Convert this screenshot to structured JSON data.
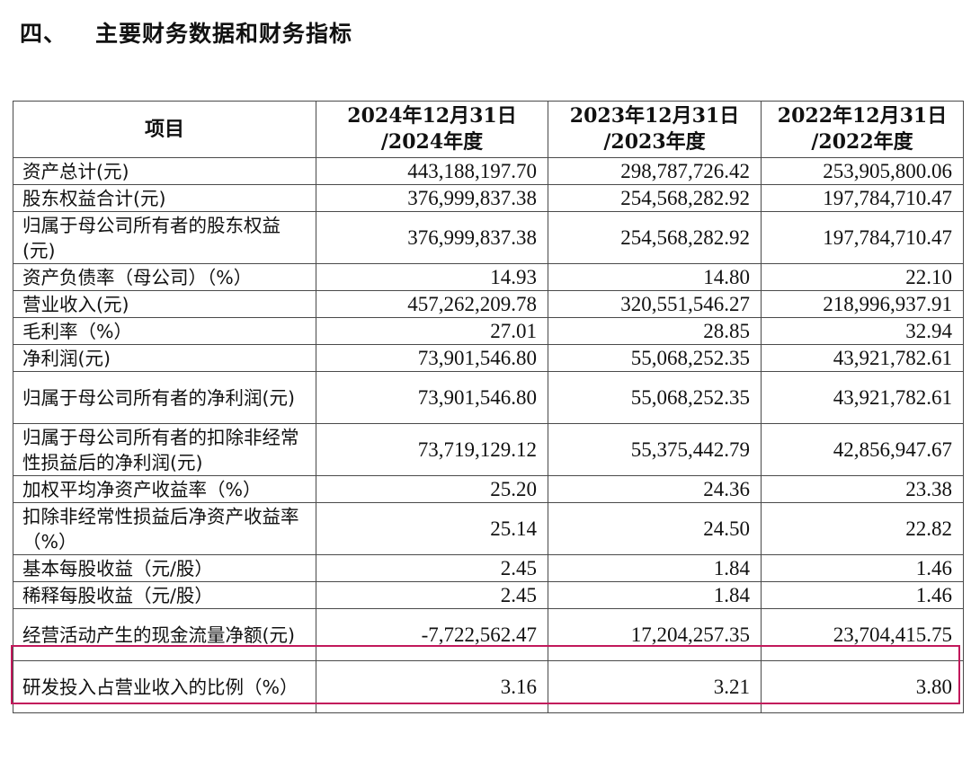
{
  "heading": {
    "number": "四、",
    "title": "主要财务数据和财务指标"
  },
  "table": {
    "header": {
      "item": "项目",
      "col1": [
        "2024年12月31日",
        "/2024年度"
      ],
      "col2": [
        "2023年12月31日",
        "/2023年度"
      ],
      "col3": [
        "2022年12月31日",
        "/2022年度"
      ]
    },
    "rows": [
      {
        "label": "资产总计(元)",
        "v2024": "443,188,197.70",
        "v2023": "298,787,726.42",
        "v2022": "253,905,800.06"
      },
      {
        "label": "股东权益合计(元)",
        "v2024": "376,999,837.38",
        "v2023": "254,568,282.92",
        "v2022": "197,784,710.47"
      },
      {
        "label": "归属于母公司所有者的股东权益(元)",
        "v2024": "376,999,837.38",
        "v2023": "254,568,282.92",
        "v2022": "197,784,710.47"
      },
      {
        "label": "资产负债率（母公司）（%）",
        "v2024": "14.93",
        "v2023": "14.80",
        "v2022": "22.10"
      },
      {
        "label": "营业收入(元)",
        "v2024": "457,262,209.78",
        "v2023": "320,551,546.27",
        "v2022": "218,996,937.91"
      },
      {
        "label": "毛利率（%）",
        "v2024": "27.01",
        "v2023": "28.85",
        "v2022": "32.94"
      },
      {
        "label": "净利润(元)",
        "v2024": "73,901,546.80",
        "v2023": "55,068,252.35",
        "v2022": "43,921,782.61"
      },
      {
        "label": "归属于母公司所有者的净利润(元)",
        "v2024": "73,901,546.80",
        "v2023": "55,068,252.35",
        "v2022": "43,921,782.61"
      },
      {
        "label": "归属于母公司所有者的扣除非经常性损益后的净利润(元)",
        "v2024": "73,719,129.12",
        "v2023": "55,375,442.79",
        "v2022": "42,856,947.67"
      },
      {
        "label": "加权平均净资产收益率（%）",
        "v2024": "25.20",
        "v2023": "24.36",
        "v2022": "23.38"
      },
      {
        "label": "扣除非经常性损益后净资产收益率（%）",
        "v2024": "25.14",
        "v2023": "24.50",
        "v2022": "22.82"
      },
      {
        "label": "基本每股收益（元/股）",
        "v2024": "2.45",
        "v2023": "1.84",
        "v2022": "1.46"
      },
      {
        "label": "稀释每股收益（元/股）",
        "v2024": "2.45",
        "v2023": "1.84",
        "v2022": "1.46"
      },
      {
        "label": "经营活动产生的现金流量净额(元)",
        "v2024": "-7,722,562.47",
        "v2023": "17,204,257.35",
        "v2022": "23,704,415.75"
      },
      {
        "label": "研发投入占营业收入的比例（%）",
        "v2024": "3.16",
        "v2023": "3.21",
        "v2022": "3.80"
      }
    ]
  },
  "highlight_color": "#c2185b"
}
